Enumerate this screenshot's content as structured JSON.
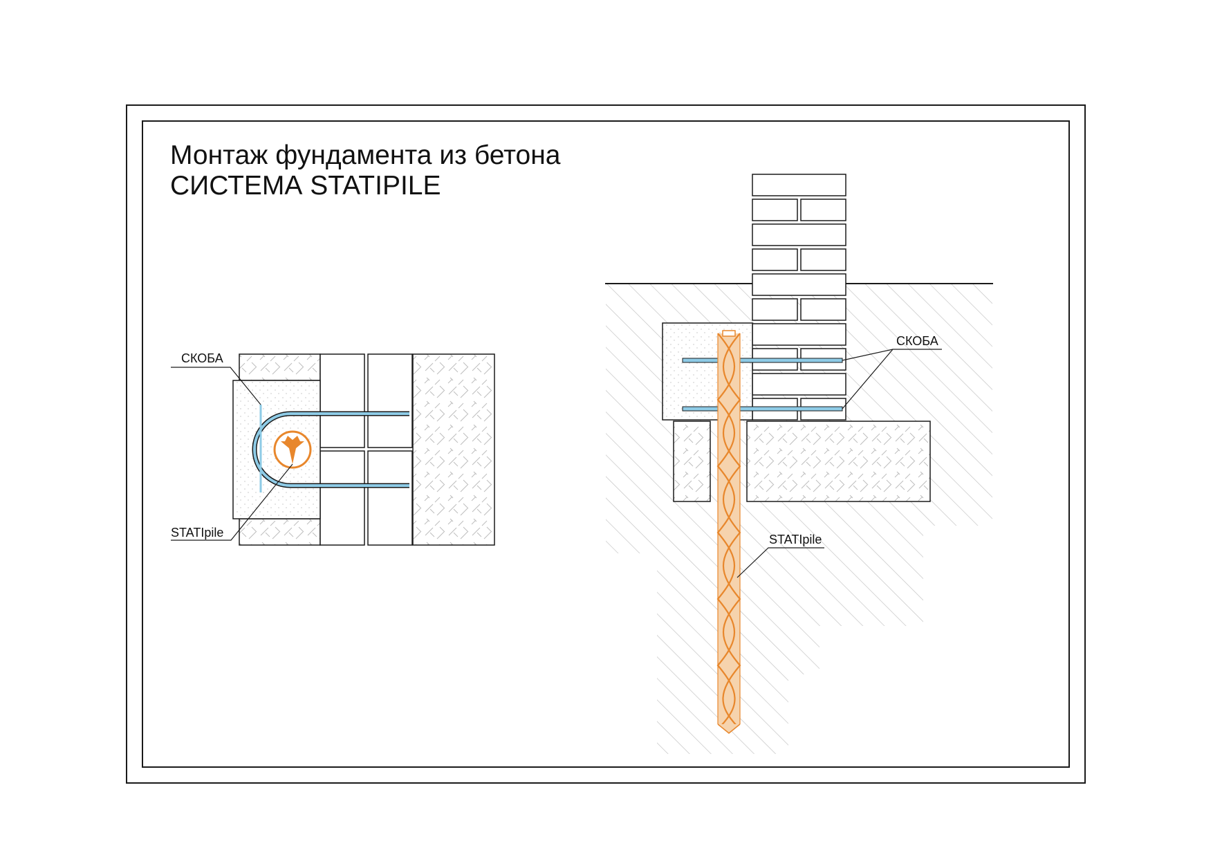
{
  "title": {
    "line1": "Монтаж фундамента из бетона",
    "line2": "СИСТЕМА STATIPILE"
  },
  "plan_view": {
    "bracket_label": "СКОБА",
    "pile_label": "STATIpile"
  },
  "section_view": {
    "bracket_label": "СКОБА",
    "pile_label": "STATIpile"
  },
  "colors": {
    "line": "#1a1a1a",
    "hatch": "#c4c4c4",
    "bracket": "#8ecbe6",
    "pile": "#e8872c",
    "pile_light": "#f4c492"
  }
}
